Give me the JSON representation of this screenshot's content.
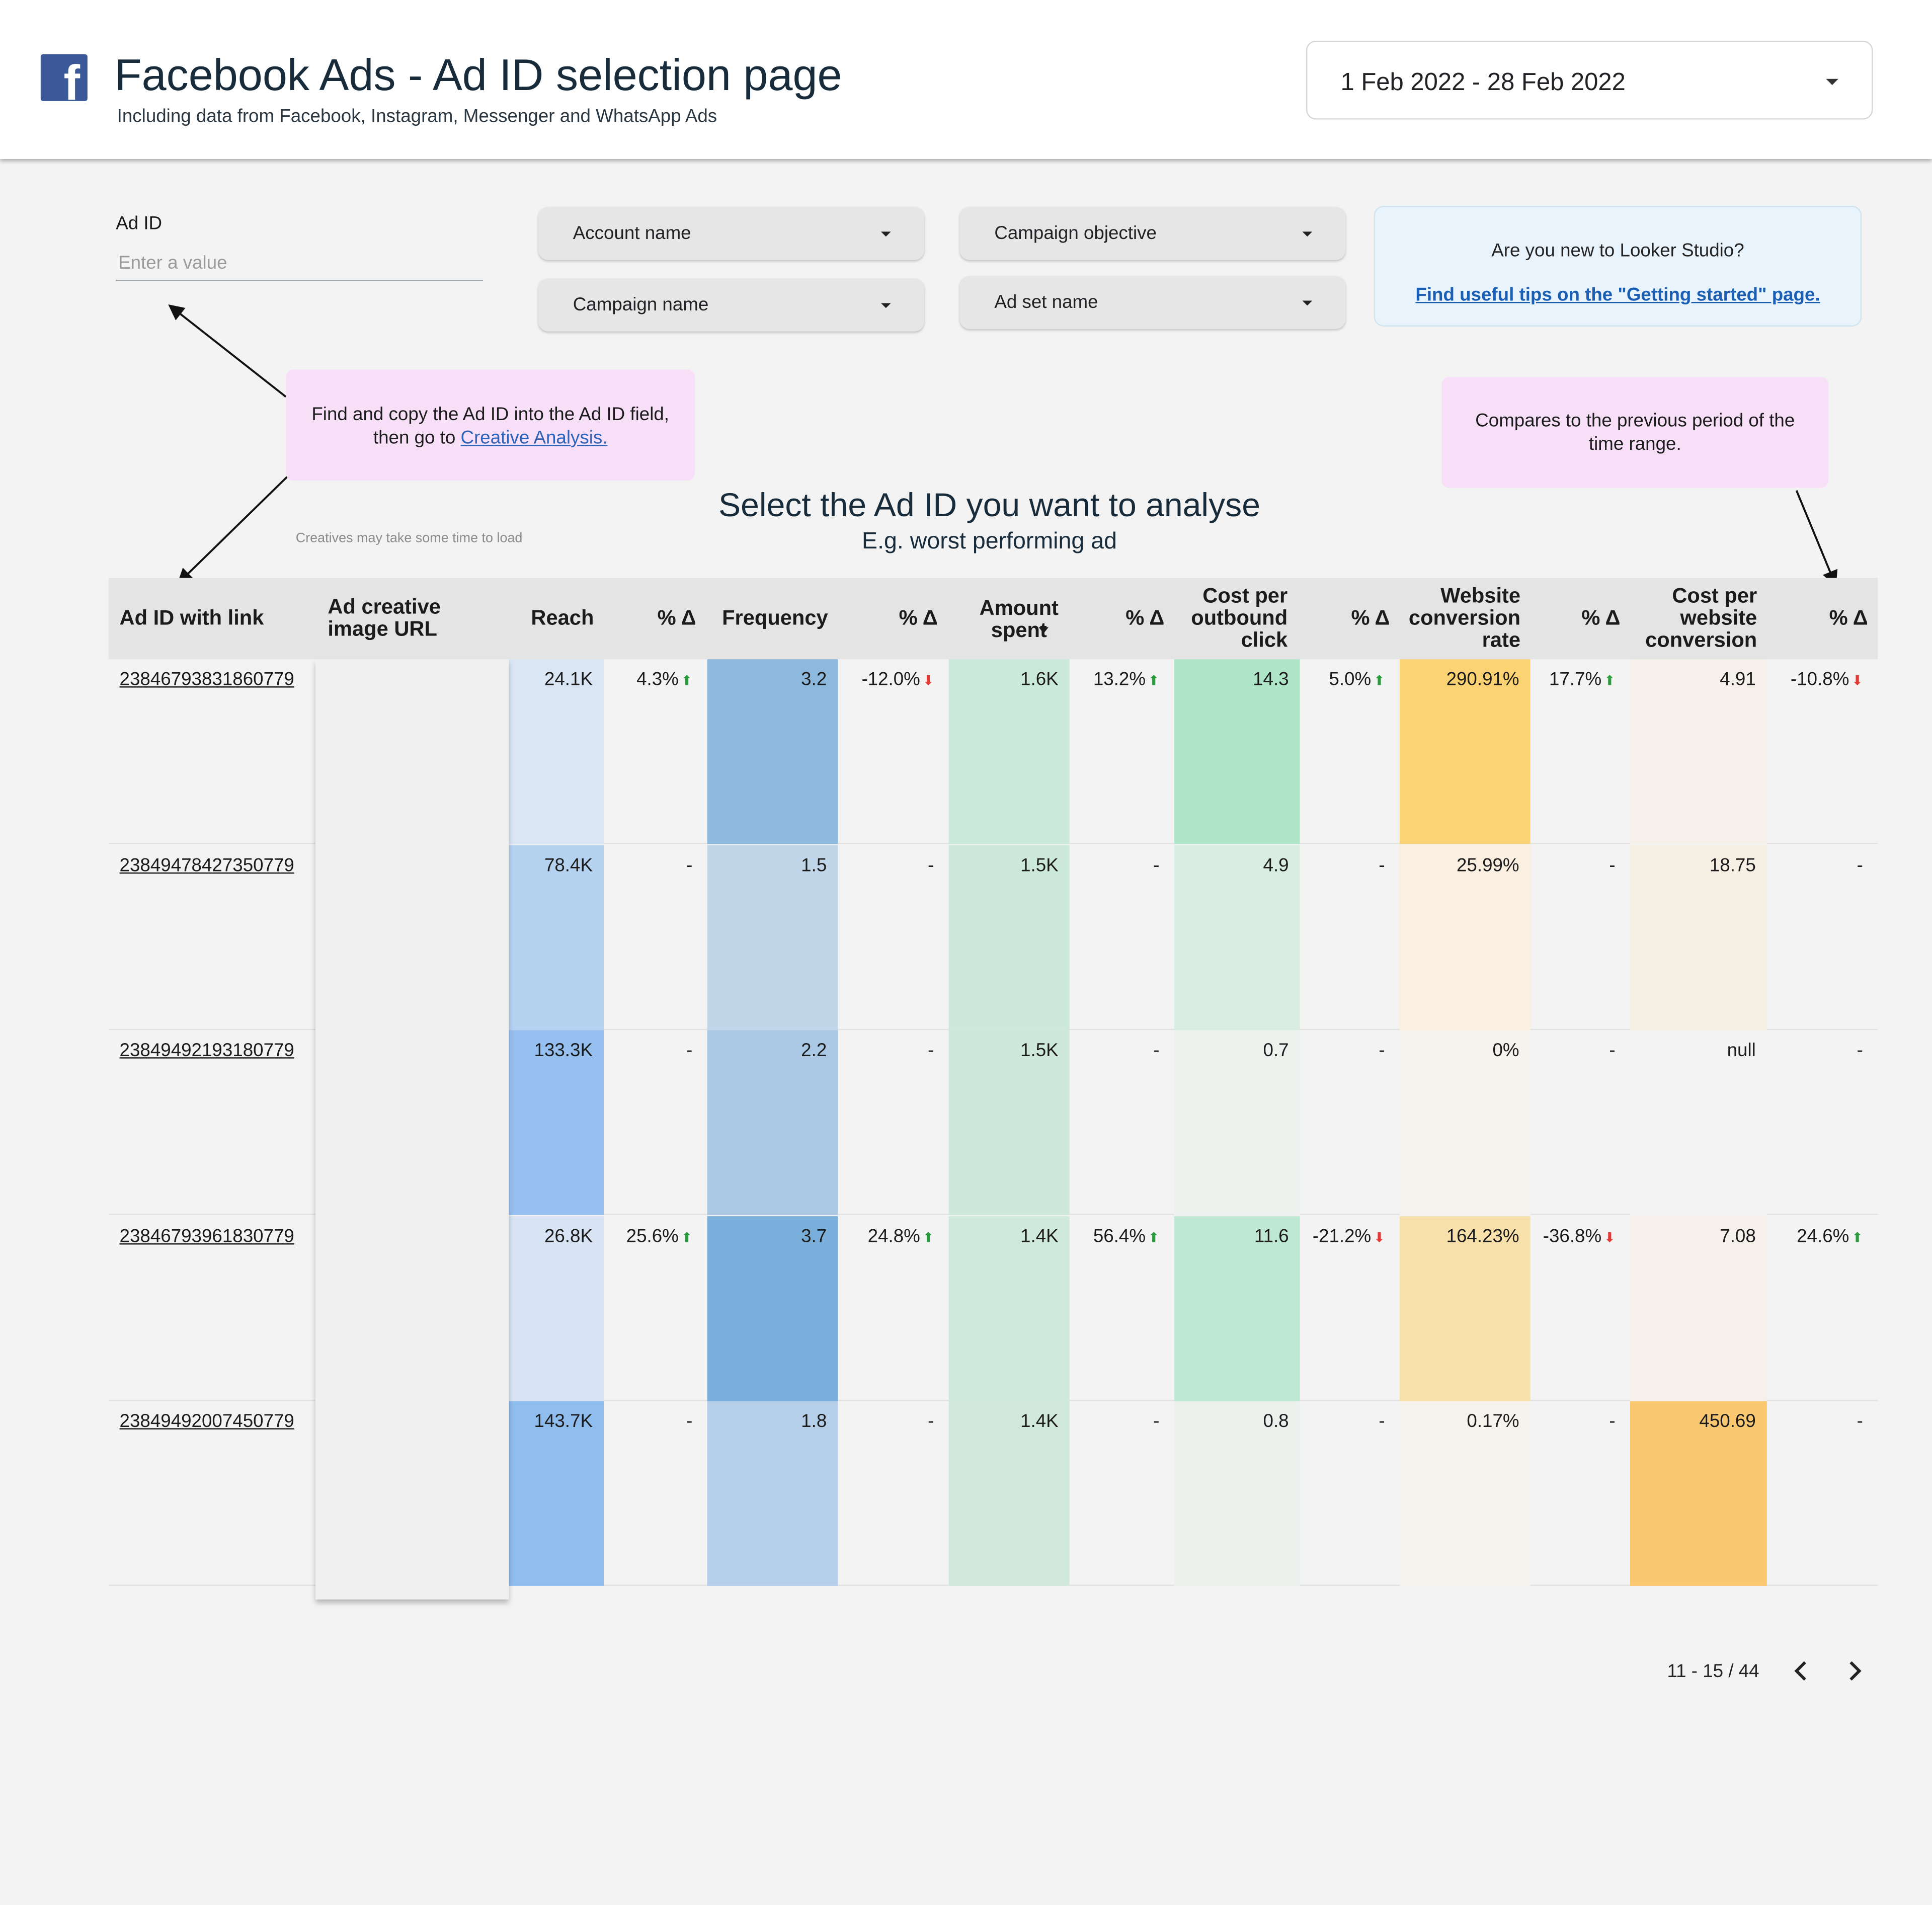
{
  "header": {
    "title": "Facebook Ads - Ad ID selection page",
    "subtitle": "Including data from Facebook, Instagram, Messenger and WhatsApp Ads",
    "logo_icon": "facebook-logo-icon",
    "date_range": "1 Feb 2022 - 28 Feb 2022"
  },
  "filters": {
    "ad_id_label": "Ad ID",
    "ad_id_placeholder": "Enter a value",
    "account_name": "Account name",
    "campaign_objective": "Campaign objective",
    "campaign_name": "Campaign name",
    "ad_set_name": "Ad set name"
  },
  "info_box": {
    "question": "Are you new to Looker Studio?",
    "link": "Find useful tips on the \"Getting started\" page."
  },
  "notes": {
    "left_text": "Find and copy the Ad ID into the Ad ID field, then go to",
    "left_link": "Creative Analysis.",
    "right_text": "Compares to the previous period of the time range.",
    "loading": "Creatives may take some time to load"
  },
  "section": {
    "title": "Select the Ad ID you want to analyse",
    "subtitle": "E.g. worst performing ad"
  },
  "colors": {
    "reach_heat": "#90bff0",
    "frequency_heat": "#7aaedb",
    "spent_heat": "#bfe8d2",
    "cpc_heat": "#abe5c5",
    "conv_rate_heat": "#fbd374",
    "cost_conv_heat": "#f9c871",
    "delta_up": "#2c9a3e",
    "delta_down": "#e53935"
  },
  "table": {
    "headers": {
      "ad_id": "Ad ID with link",
      "creative": "Ad creative image URL",
      "reach": "Reach",
      "delta": "% Δ",
      "frequency": "Frequency",
      "amount_spent": "Amount spent",
      "cost_per_click": "Cost per outbound click",
      "website_conversion_rate": "Website conversion rate",
      "cost_per_conversion": "Cost per website conversion"
    },
    "rows": [
      {
        "ad_id": "23846793831860779",
        "reach": "24.1K",
        "reach_d": "4.3%",
        "reach_dir": "up",
        "freq": "3.2",
        "freq_d": "-12.0%",
        "freq_dir": "down",
        "spent": "1.6K",
        "spent_d": "13.2%",
        "spent_dir": "up",
        "cpc": "14.3",
        "cpc_d": "5.0%",
        "cpc_dir": "up",
        "conv": "290.91%",
        "conv_d": "17.7%",
        "conv_dir": "up",
        "cpconv": "4.91",
        "cpconv_d": "-10.8%",
        "cpconv_dir": "down"
      },
      {
        "ad_id": "23849478427350779",
        "reach": "78.4K",
        "reach_d": "-",
        "reach_dir": "",
        "freq": "1.5",
        "freq_d": "-",
        "freq_dir": "",
        "spent": "1.5K",
        "spent_d": "-",
        "spent_dir": "",
        "cpc": "4.9",
        "cpc_d": "-",
        "cpc_dir": "",
        "conv": "25.99%",
        "conv_d": "-",
        "conv_dir": "",
        "cpconv": "18.75",
        "cpconv_d": "-",
        "cpconv_dir": ""
      },
      {
        "ad_id": "23849492193180779",
        "reach": "133.3K",
        "reach_d": "-",
        "reach_dir": "",
        "freq": "2.2",
        "freq_d": "-",
        "freq_dir": "",
        "spent": "1.5K",
        "spent_d": "-",
        "spent_dir": "",
        "cpc": "0.7",
        "cpc_d": "-",
        "cpc_dir": "",
        "conv": "0%",
        "conv_d": "-",
        "conv_dir": "",
        "cpconv": "null",
        "cpconv_d": "-",
        "cpconv_dir": ""
      },
      {
        "ad_id": "23846793961830779",
        "reach": "26.8K",
        "reach_d": "25.6%",
        "reach_dir": "up",
        "freq": "3.7",
        "freq_d": "24.8%",
        "freq_dir": "up",
        "spent": "1.4K",
        "spent_d": "56.4%",
        "spent_dir": "up",
        "cpc": "11.6",
        "cpc_d": "-21.2%",
        "cpc_dir": "down",
        "conv": "164.23%",
        "conv_d": "-36.8%",
        "conv_dir": "down",
        "cpconv": "7.08",
        "cpconv_d": "24.6%",
        "cpconv_dir": "up"
      },
      {
        "ad_id": "23849492007450779",
        "reach": "143.7K",
        "reach_d": "-",
        "reach_dir": "",
        "freq": "1.8",
        "freq_d": "-",
        "freq_dir": "",
        "spent": "1.4K",
        "spent_d": "-",
        "spent_dir": "",
        "cpc": "0.8",
        "cpc_d": "-",
        "cpc_dir": "",
        "conv": "0.17%",
        "conv_d": "-",
        "conv_dir": "",
        "cpconv": "450.69",
        "cpconv_d": "-",
        "cpconv_dir": ""
      }
    ]
  },
  "pagination": {
    "label": "11 - 15 / 44",
    "prev_icon": "chevron-left-icon",
    "next_icon": "chevron-right-icon"
  }
}
